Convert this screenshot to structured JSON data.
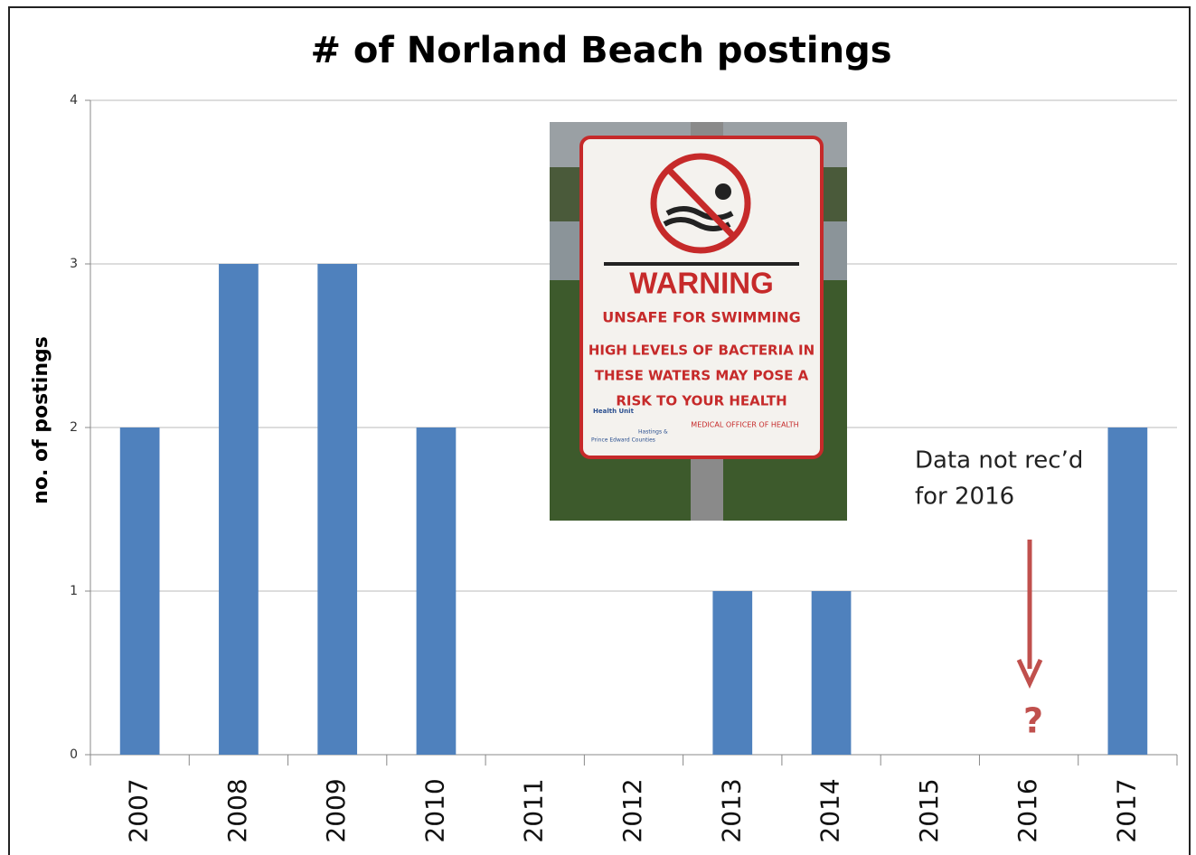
{
  "chart_data": {
    "type": "bar",
    "title": "# of Norland Beach postings",
    "y_label": "no. of postings",
    "categories": [
      "2007",
      "2008",
      "2009",
      "2010",
      "2011",
      "2012",
      "2013",
      "2014",
      "2015",
      "2016",
      "2017"
    ],
    "values": [
      2,
      3,
      3,
      2,
      0,
      0,
      1,
      1,
      0,
      null,
      2
    ],
    "color": "#4f81bd",
    "ylim": [
      0,
      4
    ],
    "yticks": [
      0,
      1,
      2,
      3,
      4
    ],
    "grid": true,
    "annotations": [
      "Data not rec’d",
      "for 2016",
      "?"
    ],
    "sign": {
      "heading": "WARNING",
      "line1": "UNSAFE FOR SWIMMING",
      "line2": "HIGH LEVELS OF BACTERIA IN",
      "line3": "THESE WATERS MAY POSE A",
      "line4": "RISK TO YOUR HEALTH",
      "footer": "MEDICAL OFFICER OF HEALTH",
      "org1": "Health Unit",
      "org2": "Hastings &",
      "org3": "Prince Edward Counties"
    }
  }
}
